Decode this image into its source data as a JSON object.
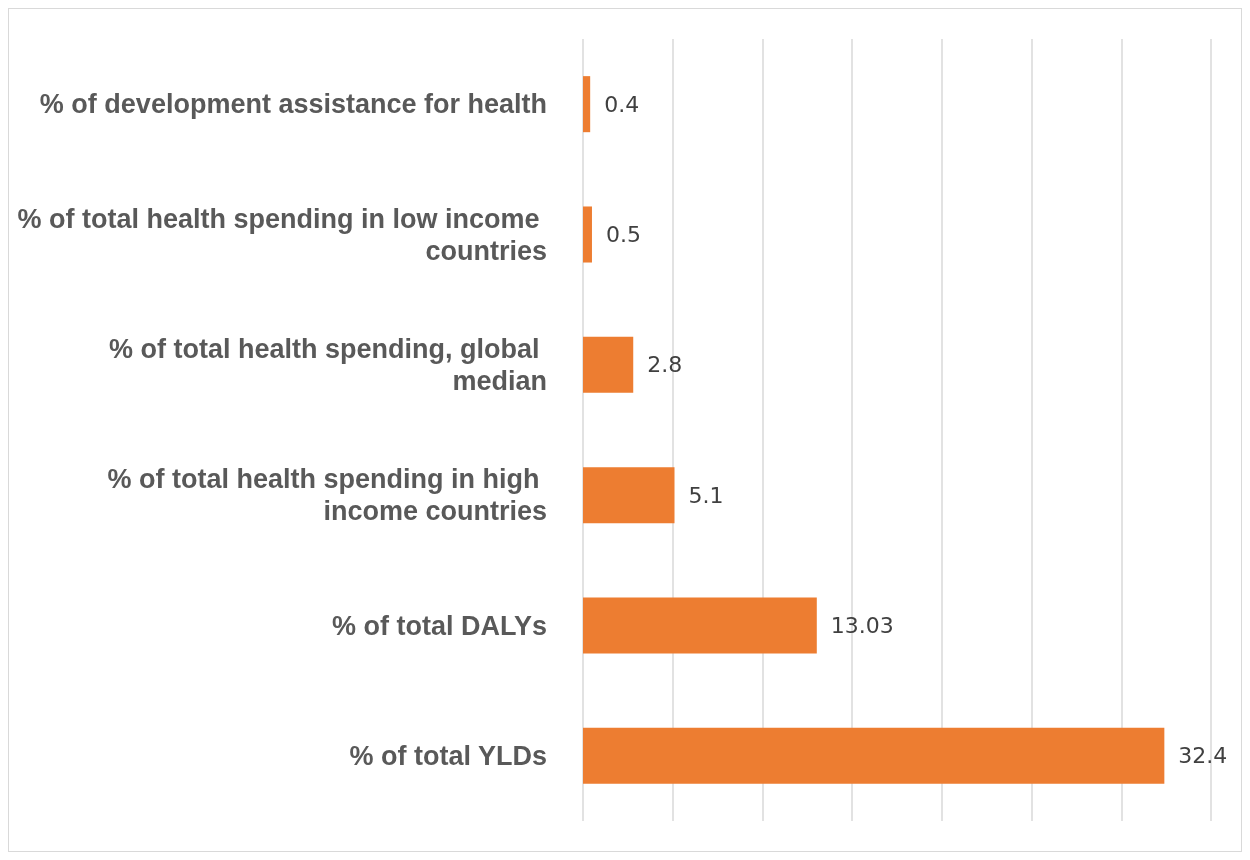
{
  "chart_data": {
    "type": "bar",
    "orientation": "horizontal",
    "categories": [
      "% of development assistance for health",
      "% of total health spending in low income countries",
      "% of total health spending, global median",
      "% of total health spending in high income countries",
      "% of total DALYs",
      "% of total YLDs"
    ],
    "values": [
      0.4,
      0.5,
      2.8,
      5.1,
      13.03,
      32.4
    ],
    "color": "#ed7d31",
    "xlim": [
      0,
      35
    ],
    "xticks": [
      {
        "value": 0,
        "label": null
      },
      {
        "value": 5,
        "label": null
      },
      {
        "value": 10,
        "label": null
      },
      {
        "value": 15,
        "label": null
      },
      {
        "value": 20,
        "label": null
      },
      {
        "value": 25,
        "label": null
      },
      {
        "value": 30,
        "label": null
      },
      {
        "value": 35,
        "label": null
      }
    ],
    "grid": "x",
    "data_labels": true,
    "tick_labels": "y"
  }
}
